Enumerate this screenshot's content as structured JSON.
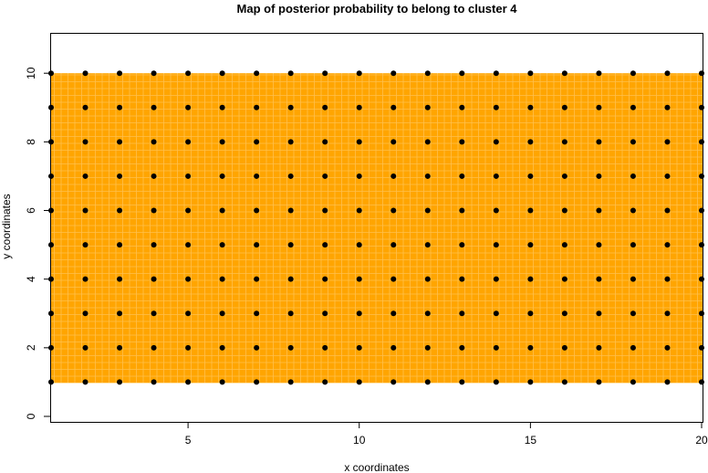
{
  "chart_data": {
    "type": "heatmap",
    "title": "Map of posterior probability to belong to cluster  4",
    "xlabel": "x coordinates",
    "ylabel": "y coordinates",
    "xlim": [
      1,
      20
    ],
    "ylim": [
      0,
      11
    ],
    "x_ticks": [
      5,
      10,
      15,
      20
    ],
    "y_ticks": [
      0,
      2,
      4,
      6,
      8,
      10
    ],
    "grid_x": [
      1,
      20
    ],
    "grid_y": [
      1,
      10
    ],
    "fill_color": "#FFA500",
    "point_color": "#000000",
    "points": "all integer (x,y) with x in 1..20 and y in 1..10",
    "grid": false,
    "legend": "none"
  }
}
